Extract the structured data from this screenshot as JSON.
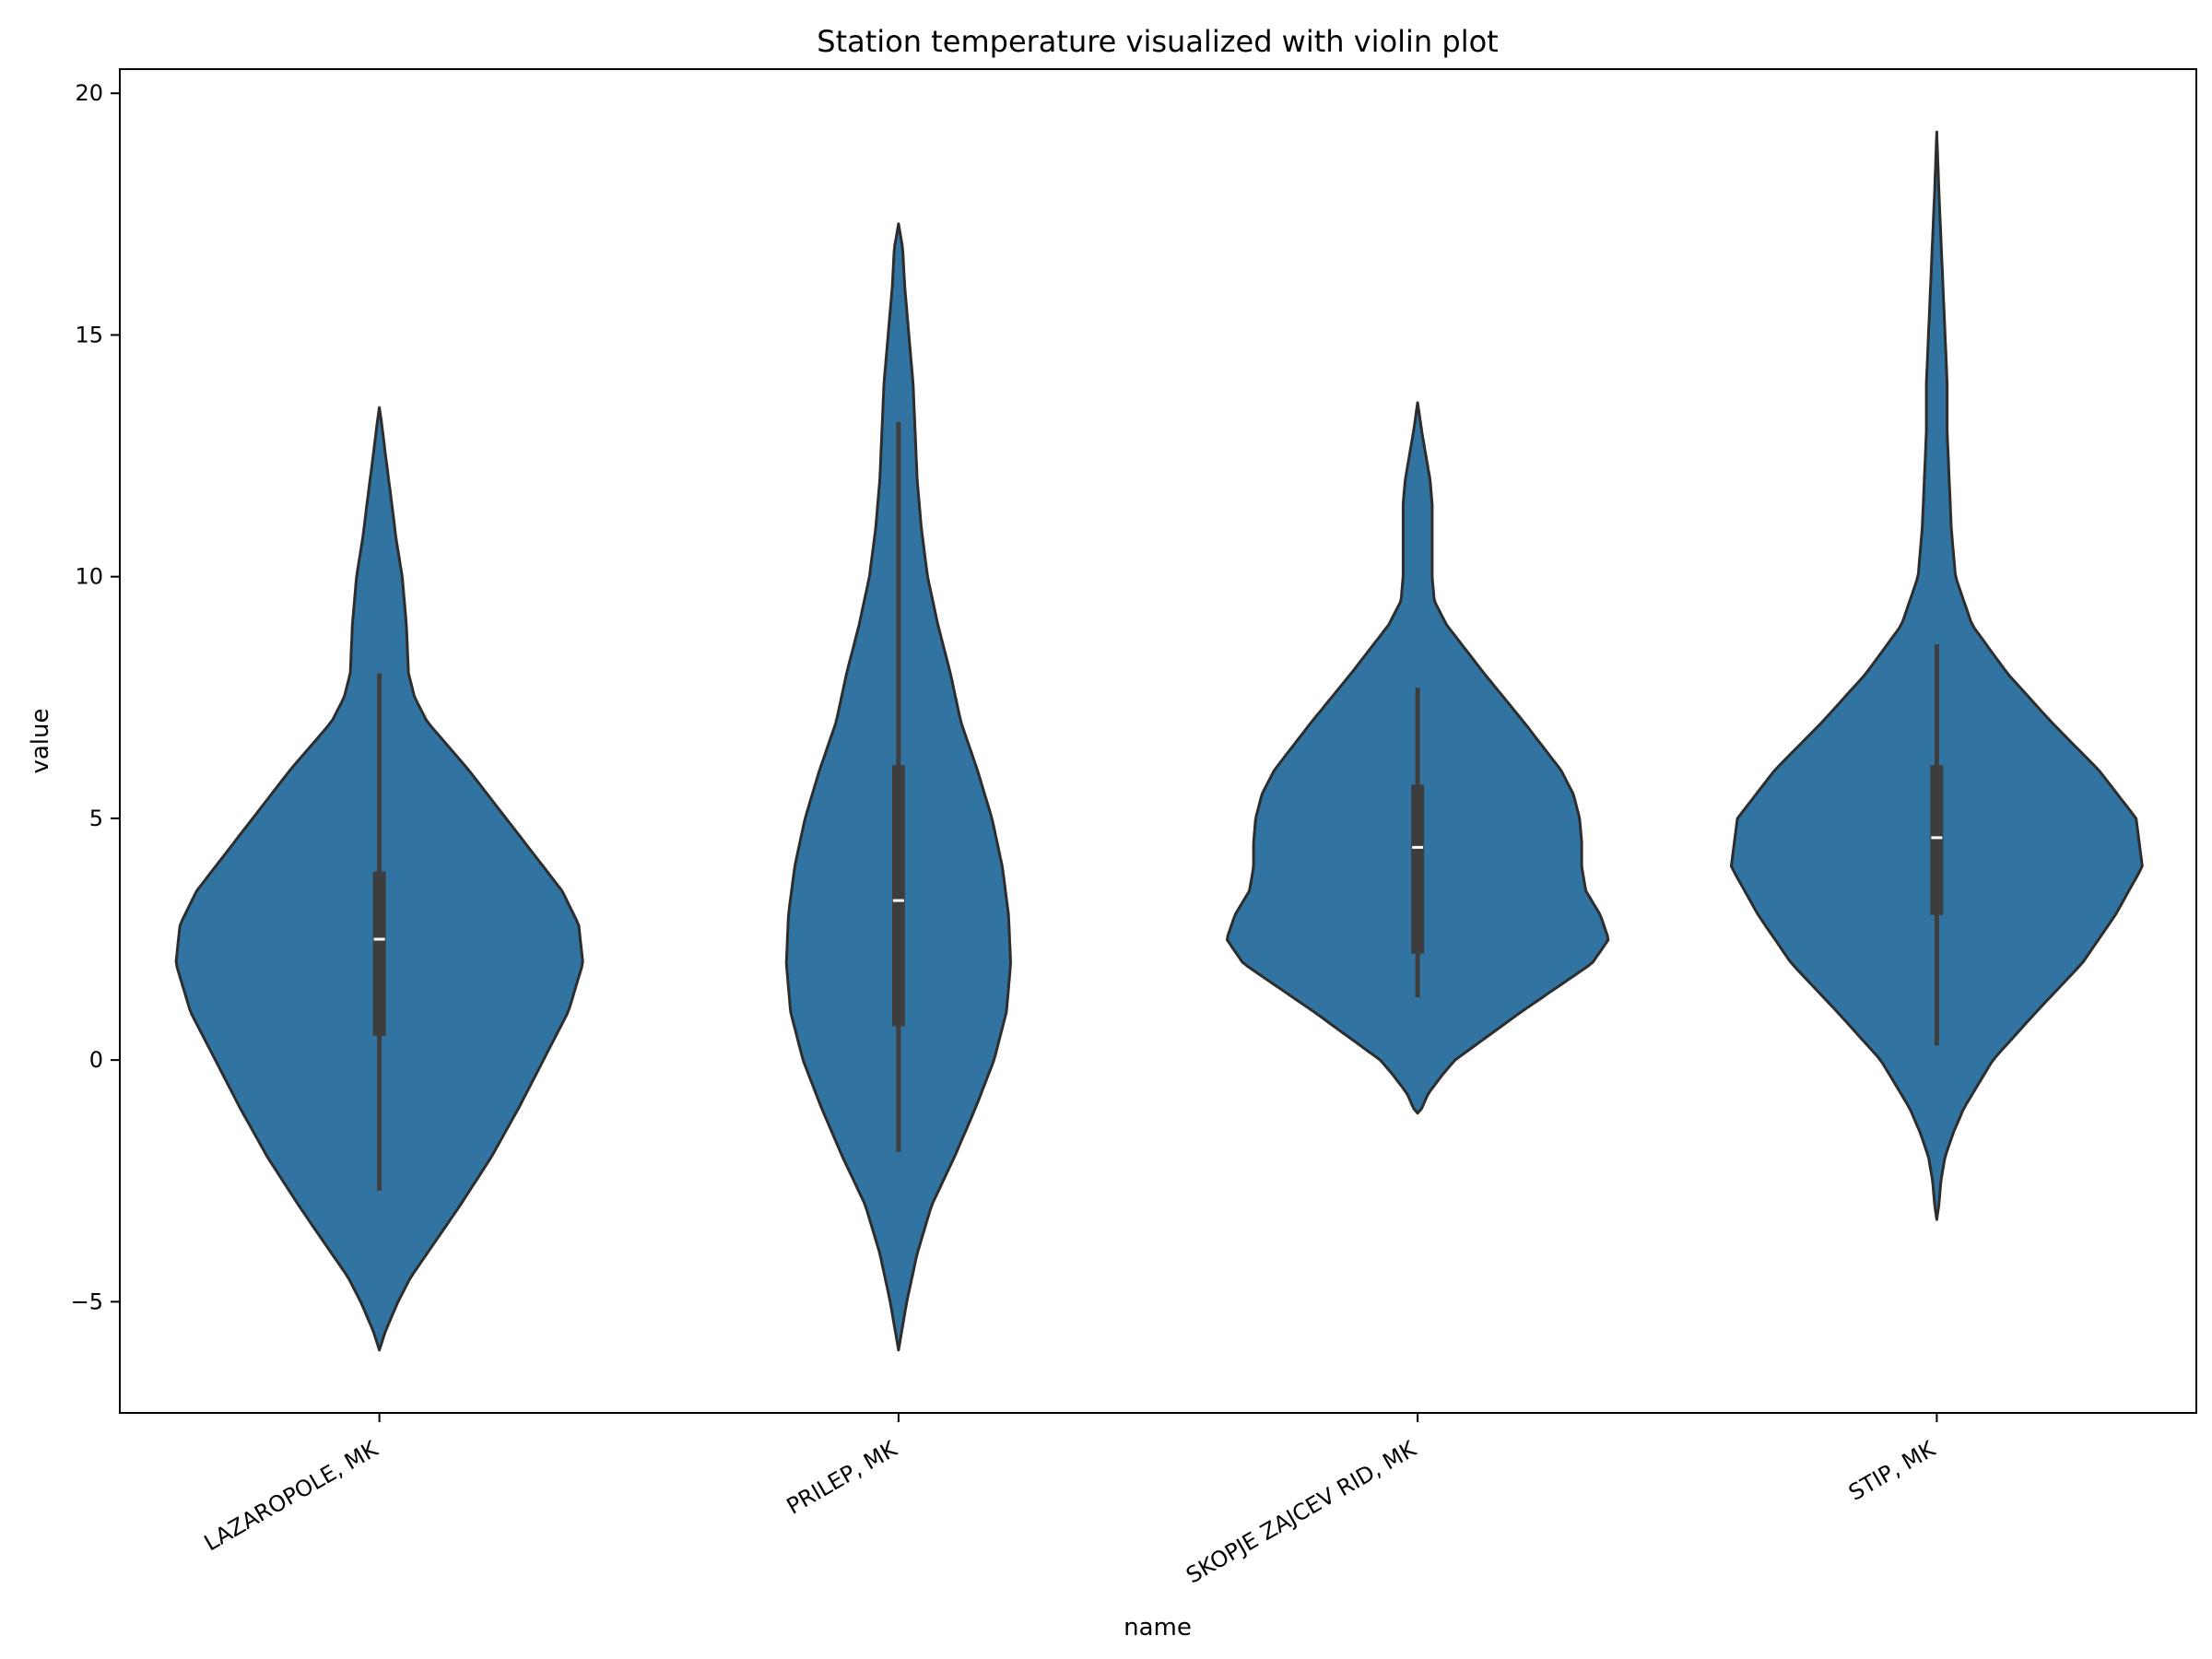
{
  "chart_data": {
    "type": "violin",
    "title": "Station temperature visualized with violin plot",
    "xlabel": "name",
    "ylabel": "value",
    "ylim": [
      -7.3,
      20.5
    ],
    "yticks": [
      -5,
      0,
      5,
      10,
      15,
      20
    ],
    "ytick_labels": [
      "−5",
      "0",
      "5",
      "10",
      "15",
      "20"
    ],
    "categories": [
      "LAZAROPOLE, MK",
      "PRILEP, MK",
      "SKOPJE ZAJCEV RID, MK",
      "STIP, MK"
    ],
    "colors": {
      "fill": "#3274a1",
      "edge": "#2d2d2d",
      "box": "#3d3d3d",
      "median": "#ffffff"
    },
    "violins": [
      {
        "name": "LAZAROPOLE, MK",
        "min": -6.0,
        "max": 13.5,
        "whisker_low": -2.7,
        "q1": 0.5,
        "median": 2.5,
        "q3": 3.9,
        "whisker_high": 8.0,
        "profile": [
          [
            -6.0,
            0.0
          ],
          [
            -5.6,
            0.03
          ],
          [
            -5.0,
            0.09
          ],
          [
            -4.5,
            0.15
          ],
          [
            -4.0,
            0.23
          ],
          [
            -3.0,
            0.39
          ],
          [
            -2.0,
            0.54
          ],
          [
            -1.0,
            0.67
          ],
          [
            0.0,
            0.79
          ],
          [
            1.0,
            0.91
          ],
          [
            2.0,
            0.98
          ],
          [
            2.8,
            0.96
          ],
          [
            3.5,
            0.88
          ],
          [
            4.0,
            0.79
          ],
          [
            5.0,
            0.61
          ],
          [
            6.0,
            0.43
          ],
          [
            7.0,
            0.23
          ],
          [
            7.5,
            0.17
          ],
          [
            8.0,
            0.14
          ],
          [
            9.0,
            0.13
          ],
          [
            9.5,
            0.12
          ],
          [
            10.0,
            0.11
          ],
          [
            10.8,
            0.08
          ],
          [
            11.5,
            0.06
          ],
          [
            12.5,
            0.03
          ],
          [
            13.2,
            0.01
          ],
          [
            13.5,
            0.0
          ]
        ]
      },
      {
        "name": "PRILEP, MK",
        "min": -6.0,
        "max": 17.3,
        "whisker_low": -1.9,
        "q1": 0.7,
        "median": 3.3,
        "q3": 6.1,
        "whisker_high": 13.2,
        "profile": [
          [
            -6.0,
            0.0
          ],
          [
            -5.5,
            0.02
          ],
          [
            -5.0,
            0.04
          ],
          [
            -4.0,
            0.09
          ],
          [
            -3.0,
            0.16
          ],
          [
            -2.0,
            0.27
          ],
          [
            -1.0,
            0.37
          ],
          [
            0.0,
            0.46
          ],
          [
            1.0,
            0.52
          ],
          [
            2.0,
            0.54
          ],
          [
            3.0,
            0.53
          ],
          [
            4.0,
            0.5
          ],
          [
            5.0,
            0.45
          ],
          [
            6.0,
            0.38
          ],
          [
            7.0,
            0.3
          ],
          [
            8.0,
            0.25
          ],
          [
            9.0,
            0.19
          ],
          [
            10.0,
            0.14
          ],
          [
            11.0,
            0.11
          ],
          [
            12.0,
            0.09
          ],
          [
            13.0,
            0.08
          ],
          [
            14.0,
            0.07
          ],
          [
            15.0,
            0.05
          ],
          [
            16.0,
            0.03
          ],
          [
            16.8,
            0.02
          ],
          [
            17.3,
            0.0
          ]
        ]
      },
      {
        "name": "SKOPJE ZAJCEV RID, MK",
        "min": -1.1,
        "max": 13.6,
        "whisker_low": 1.3,
        "q1": 2.2,
        "median": 4.4,
        "q3": 5.7,
        "whisker_high": 7.7,
        "profile": [
          [
            -1.1,
            0.0
          ],
          [
            -1.0,
            0.02
          ],
          [
            -0.7,
            0.05
          ],
          [
            -0.3,
            0.12
          ],
          [
            0.0,
            0.18
          ],
          [
            0.5,
            0.34
          ],
          [
            1.0,
            0.5
          ],
          [
            1.5,
            0.67
          ],
          [
            2.0,
            0.84
          ],
          [
            2.5,
            0.92
          ],
          [
            3.0,
            0.88
          ],
          [
            3.5,
            0.81
          ],
          [
            4.0,
            0.79
          ],
          [
            4.5,
            0.79
          ],
          [
            5.0,
            0.78
          ],
          [
            5.5,
            0.75
          ],
          [
            6.0,
            0.69
          ],
          [
            7.0,
            0.51
          ],
          [
            8.0,
            0.32
          ],
          [
            9.0,
            0.14
          ],
          [
            9.5,
            0.08
          ],
          [
            10.0,
            0.07
          ],
          [
            10.5,
            0.07
          ],
          [
            11.0,
            0.07
          ],
          [
            11.5,
            0.07
          ],
          [
            12.0,
            0.06
          ],
          [
            12.5,
            0.04
          ],
          [
            13.0,
            0.02
          ],
          [
            13.6,
            0.0
          ]
        ]
      },
      {
        "name": "STIP, MK",
        "min": -3.3,
        "max": 19.2,
        "whisker_low": 0.3,
        "q1": 3.0,
        "median": 4.6,
        "q3": 6.1,
        "whisker_high": 8.6,
        "profile": [
          [
            -3.3,
            0.0
          ],
          [
            -3.0,
            0.01
          ],
          [
            -2.5,
            0.02
          ],
          [
            -2.0,
            0.04
          ],
          [
            -1.5,
            0.08
          ],
          [
            -1.0,
            0.13
          ],
          [
            0.0,
            0.27
          ],
          [
            1.0,
            0.48
          ],
          [
            2.0,
            0.7
          ],
          [
            3.0,
            0.86
          ],
          [
            4.0,
            0.99
          ],
          [
            5.0,
            0.96
          ],
          [
            6.0,
            0.78
          ],
          [
            7.0,
            0.55
          ],
          [
            8.0,
            0.34
          ],
          [
            9.0,
            0.17
          ],
          [
            10.0,
            0.09
          ],
          [
            11.0,
            0.07
          ],
          [
            12.0,
            0.06
          ],
          [
            13.0,
            0.05
          ],
          [
            14.0,
            0.05
          ],
          [
            15.0,
            0.04
          ],
          [
            16.0,
            0.03
          ],
          [
            17.0,
            0.02
          ],
          [
            18.0,
            0.01
          ],
          [
            19.2,
            0.0
          ]
        ]
      }
    ]
  }
}
